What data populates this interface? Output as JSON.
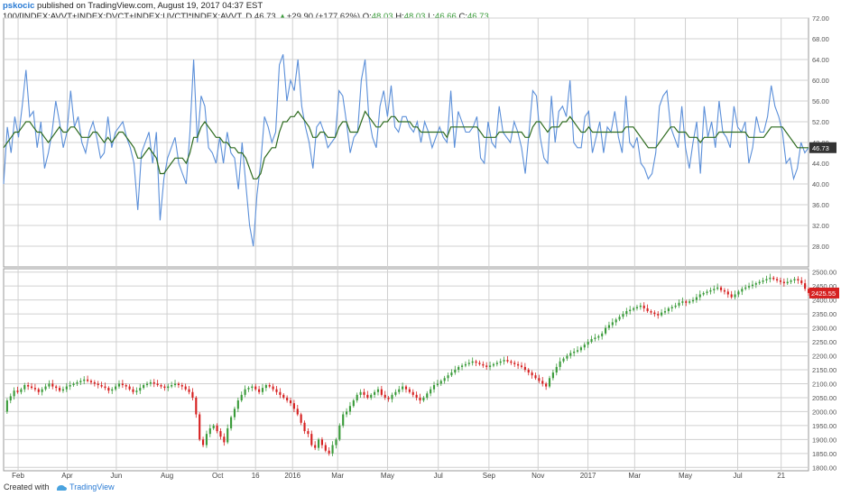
{
  "header": {
    "user": "pskocic",
    "published": " published on TradingView.com, August 19, 2017 04:37 EST",
    "symbol": "100/[INDEX:AVVT+INDEX:DVCT+INDEX:UVCT]*INDEX:AVVT, D",
    "last": "46.73",
    "change": "+29.90 (+177.62%)",
    "open_label": "O:",
    "open": "48.03",
    "high_label": "H:",
    "high": "48.03",
    "low_label": "L:",
    "low": "46.66",
    "close_label": "C:",
    "close": "46.73"
  },
  "footer": {
    "created_with": "Created with",
    "brand": "TradingView"
  },
  "colors": {
    "blue_line": "#5b8fd9",
    "green_line": "#2e6b1f",
    "up_candle": "#3a9b3a",
    "down_candle": "#d62020",
    "upper_label_bg": "#333333",
    "lower_label_bg": "#d62020"
  },
  "chart_data": [
    {
      "type": "line",
      "ylim": [
        24,
        72
      ],
      "y_ticks": [
        "72.00",
        "68.00",
        "64.00",
        "60.00",
        "56.00",
        "52.00",
        "48.00",
        "44.00",
        "40.00",
        "36.00",
        "32.00",
        "28.00"
      ],
      "y_tick_values": [
        72,
        68,
        64,
        60,
        56,
        52,
        48,
        44,
        40,
        36,
        32,
        28
      ],
      "last_value_label": "46.73",
      "grid": true,
      "series": [
        {
          "color": "blue",
          "values": [
            40,
            51,
            46,
            53,
            49,
            55,
            62,
            53,
            54,
            47,
            52,
            43,
            46,
            50,
            56,
            52,
            47,
            50,
            58,
            51,
            53,
            48,
            46,
            50,
            52,
            49,
            45,
            46,
            53,
            47,
            50,
            51,
            52,
            49,
            47,
            44,
            35,
            46,
            48,
            50,
            44,
            50,
            33,
            41,
            45,
            47,
            49,
            44,
            42,
            40,
            50,
            64,
            48,
            57,
            55,
            47,
            46,
            44,
            49,
            44,
            50,
            46,
            45,
            39,
            48,
            40,
            32,
            28,
            38,
            44,
            53,
            51,
            48,
            50,
            63,
            65,
            56,
            60,
            58,
            64,
            55,
            51,
            48,
            43,
            51,
            52,
            50,
            47,
            48,
            49,
            58,
            57,
            52,
            46,
            49,
            50,
            60,
            64,
            53,
            49,
            47,
            55,
            58,
            53,
            59,
            51,
            50,
            53,
            53,
            51,
            50,
            52,
            48,
            52,
            50,
            47,
            49,
            51,
            49,
            48,
            58,
            47,
            54,
            52,
            50,
            50,
            51,
            53,
            45,
            44,
            52,
            48,
            47,
            55,
            50,
            49,
            48,
            52,
            50,
            47,
            42,
            50,
            58,
            57,
            49,
            45,
            44,
            57,
            48,
            54,
            55,
            53,
            60,
            48,
            47,
            47,
            53,
            54,
            46,
            49,
            52,
            46,
            51,
            50,
            54,
            49,
            46,
            57,
            48,
            47,
            49,
            44,
            43,
            41,
            42,
            46,
            55,
            57,
            58,
            51,
            49,
            47,
            55,
            47,
            43,
            48,
            52,
            42,
            55,
            49,
            52,
            47,
            56,
            50,
            49,
            47,
            55,
            51,
            50,
            52,
            44,
            47,
            53,
            50,
            50,
            53,
            59,
            55,
            53,
            50,
            44,
            45,
            41,
            43,
            48,
            46,
            47
          ]
        },
        {
          "color": "green",
          "values": [
            47,
            48,
            49,
            50,
            50,
            51,
            52,
            52,
            51,
            50,
            50,
            49,
            48,
            49,
            50,
            51,
            50,
            50,
            51,
            51,
            50,
            49,
            49,
            49,
            50,
            50,
            49,
            48,
            49,
            48,
            49,
            50,
            50,
            49,
            48,
            47,
            45,
            45,
            46,
            47,
            46,
            45,
            42,
            42,
            43,
            44,
            45,
            45,
            45,
            44,
            46,
            49,
            49,
            51,
            52,
            51,
            50,
            49,
            49,
            48,
            48,
            47,
            47,
            46,
            46,
            45,
            43,
            41,
            41,
            42,
            45,
            46,
            47,
            47,
            50,
            52,
            52,
            53,
            53,
            54,
            53,
            52,
            51,
            49,
            49,
            50,
            50,
            49,
            49,
            49,
            51,
            52,
            52,
            50,
            50,
            50,
            52,
            54,
            53,
            52,
            51,
            51,
            52,
            52,
            53,
            53,
            52,
            52,
            52,
            52,
            51,
            51,
            50,
            50,
            50,
            50,
            50,
            50,
            50,
            49,
            51,
            51,
            51,
            51,
            51,
            51,
            51,
            51,
            50,
            49,
            49,
            49,
            49,
            50,
            50,
            50,
            50,
            50,
            50,
            50,
            49,
            49,
            51,
            52,
            52,
            51,
            50,
            51,
            51,
            51,
            52,
            52,
            53,
            52,
            51,
            50,
            50,
            51,
            50,
            50,
            50,
            50,
            50,
            50,
            50,
            50,
            50,
            51,
            51,
            51,
            50,
            49,
            48,
            47,
            47,
            47,
            48,
            49,
            50,
            51,
            51,
            50,
            50,
            50,
            49,
            49,
            49,
            48,
            49,
            49,
            49,
            49,
            50,
            50,
            50,
            50,
            50,
            50,
            50,
            50,
            49,
            49,
            49,
            49,
            49,
            50,
            51,
            51,
            51,
            51,
            50,
            49,
            48,
            47,
            47,
            47,
            47
          ]
        }
      ]
    },
    {
      "type": "candlestick",
      "ylim": [
        1788,
        2512
      ],
      "y_ticks": [
        "2500.00",
        "2450.00",
        "2400.00",
        "2350.00",
        "2300.00",
        "2250.00",
        "2200.00",
        "2150.00",
        "2100.00",
        "2050.00",
        "2000.00",
        "1950.00",
        "1900.00",
        "1850.00",
        "1800.00"
      ],
      "y_tick_values": [
        2500,
        2450,
        2400,
        2350,
        2300,
        2250,
        2200,
        2150,
        2100,
        2050,
        2000,
        1950,
        1900,
        1850,
        1800
      ],
      "last_value_label": "2425.55",
      "x_labels": [
        "Feb",
        "Apr",
        "Jun",
        "Aug",
        "Oct",
        "16",
        "2016",
        "Mar",
        "May",
        "Jul",
        "Sep",
        "Nov",
        "2017",
        "Mar",
        "May",
        "Jul",
        "21"
      ],
      "x_label_positions": [
        0.018,
        0.079,
        0.14,
        0.203,
        0.266,
        0.313,
        0.359,
        0.415,
        0.477,
        0.54,
        0.603,
        0.664,
        0.726,
        0.784,
        0.847,
        0.912,
        0.966
      ],
      "close_values": [
        2000,
        2040,
        2055,
        2075,
        2070,
        2080,
        2095,
        2090,
        2085,
        2080,
        2070,
        2080,
        2090,
        2100,
        2090,
        2085,
        2075,
        2080,
        2090,
        2095,
        2100,
        2105,
        2110,
        2115,
        2110,
        2105,
        2100,
        2095,
        2090,
        2085,
        2075,
        2080,
        2090,
        2100,
        2095,
        2090,
        2080,
        2070,
        2075,
        2085,
        2095,
        2100,
        2105,
        2100,
        2095,
        2090,
        2085,
        2090,
        2095,
        2100,
        2095,
        2090,
        2080,
        2070,
        2050,
        1990,
        1900,
        1880,
        1920,
        1940,
        1950,
        1930,
        1910,
        1890,
        1940,
        1980,
        2010,
        2040,
        2060,
        2080,
        2085,
        2090,
        2080,
        2070,
        2085,
        2095,
        2090,
        2080,
        2070,
        2060,
        2050,
        2040,
        2030,
        2010,
        1990,
        1960,
        1930,
        1920,
        1880,
        1870,
        1900,
        1880,
        1860,
        1850,
        1880,
        1900,
        1950,
        1990,
        2000,
        2020,
        2040,
        2060,
        2070,
        2060,
        2050,
        2060,
        2070,
        2080,
        2060,
        2050,
        2045,
        2060,
        2070,
        2080,
        2090,
        2080,
        2070,
        2060,
        2050,
        2040,
        2050,
        2065,
        2080,
        2095,
        2100,
        2110,
        2120,
        2130,
        2140,
        2150,
        2160,
        2165,
        2170,
        2175,
        2180,
        2175,
        2170,
        2165,
        2160,
        2165,
        2170,
        2175,
        2180,
        2185,
        2180,
        2175,
        2170,
        2165,
        2160,
        2150,
        2140,
        2130,
        2120,
        2110,
        2100,
        2090,
        2120,
        2140,
        2160,
        2180,
        2190,
        2200,
        2210,
        2215,
        2220,
        2230,
        2240,
        2250,
        2260,
        2265,
        2270,
        2280,
        2300,
        2310,
        2320,
        2330,
        2340,
        2350,
        2360,
        2365,
        2370,
        2375,
        2380,
        2370,
        2360,
        2355,
        2350,
        2345,
        2355,
        2360,
        2370,
        2375,
        2380,
        2390,
        2395,
        2390,
        2395,
        2400,
        2410,
        2420,
        2425,
        2430,
        2435,
        2440,
        2445,
        2435,
        2430,
        2420,
        2410,
        2420,
        2430,
        2440,
        2445,
        2450,
        2455,
        2460,
        2465,
        2470,
        2475,
        2480,
        2475,
        2470,
        2465,
        2460,
        2465,
        2470,
        2475,
        2470,
        2460,
        2440,
        2425
      ]
    }
  ]
}
